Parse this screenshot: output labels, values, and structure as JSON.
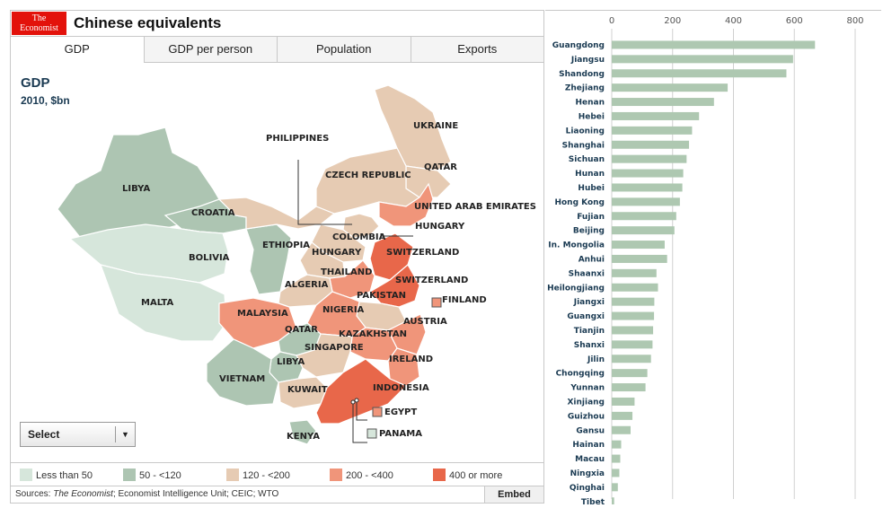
{
  "header": {
    "logo_line1": "The",
    "logo_line2": "Economist",
    "title": "Chinese equivalents"
  },
  "tabs": [
    {
      "label": "GDP",
      "active": true
    },
    {
      "label": "GDP per person",
      "active": false
    },
    {
      "label": "Population",
      "active": false
    },
    {
      "label": "Exports",
      "active": false
    }
  ],
  "map": {
    "title": "GDP",
    "subtitle": "2010, $bn",
    "select_label": "Select",
    "regions": [
      {
        "label": "LIBYA",
        "bucket": 1
      },
      {
        "label": "CROATIA",
        "bucket": 1
      },
      {
        "label": "BOLIVIA",
        "bucket": 0
      },
      {
        "label": "MALTA",
        "bucket": 0
      },
      {
        "label": "ETHIOPIA",
        "bucket": 1
      },
      {
        "label": "UKRAINE",
        "bucket": 2
      },
      {
        "label": "QATAR",
        "bucket": 2
      },
      {
        "label": "CZECH REPUBLIC",
        "bucket": 2
      },
      {
        "label": "PHILIPPINES",
        "bucket": 2
      },
      {
        "label": "UNITED ARAB EMIRATES",
        "bucket": 3
      },
      {
        "label": "HUNGARY",
        "bucket": 2
      },
      {
        "label": "COLOMBIA",
        "bucket": 2
      },
      {
        "label": "HUNGARY",
        "bucket": 2
      },
      {
        "label": "SWITZERLAND",
        "bucket": 4
      },
      {
        "label": "THAILAND",
        "bucket": 3
      },
      {
        "label": "SWITZERLAND",
        "bucket": 4
      },
      {
        "label": "ALGERIA",
        "bucket": 2
      },
      {
        "label": "PAKISTAN",
        "bucket": 2
      },
      {
        "label": "FINLAND",
        "bucket": 3
      },
      {
        "label": "MALAYSIA",
        "bucket": 3
      },
      {
        "label": "NIGERIA",
        "bucket": 3
      },
      {
        "label": "AUSTRIA",
        "bucket": 3
      },
      {
        "label": "QATAR",
        "bucket": 1
      },
      {
        "label": "KAZAKHSTAN",
        "bucket": 3
      },
      {
        "label": "SINGAPORE",
        "bucket": 2
      },
      {
        "label": "LIBYA",
        "bucket": 1
      },
      {
        "label": "IRELAND",
        "bucket": 3
      },
      {
        "label": "VIETNAM",
        "bucket": 1
      },
      {
        "label": "KUWAIT",
        "bucket": 2
      },
      {
        "label": "INDONESIA",
        "bucket": 4
      },
      {
        "label": "EGYPT",
        "bucket": 3
      },
      {
        "label": "PANAMA",
        "bucket": 0
      },
      {
        "label": "KENYA",
        "bucket": 1
      }
    ]
  },
  "legend": [
    {
      "label": "Less than 50",
      "color": "#d6e6db"
    },
    {
      "label": "50 - <120",
      "color": "#adc5b2"
    },
    {
      "label": "120 - <200",
      "color": "#e6cbb3"
    },
    {
      "label": "200 - <400",
      "color": "#f0957a"
    },
    {
      "label": "400 or more",
      "color": "#e8674a"
    }
  ],
  "footer": {
    "sources_prefix": "Sources: ",
    "sources_italic": "The Economist",
    "sources_rest": "; Economist Intelligence Unit; CEIC; WTO",
    "embed_label": "Embed"
  },
  "chart_data": {
    "type": "bar",
    "orientation": "horizontal",
    "bar_color": "#aec8b1",
    "xlim": [
      0,
      800
    ],
    "xticks": [
      0,
      200,
      400,
      600,
      800
    ],
    "grid": true,
    "categories": [
      "Guangdong",
      "Jiangsu",
      "Shandong",
      "Zhejiang",
      "Henan",
      "Hebei",
      "Liaoning",
      "Shanghai",
      "Sichuan",
      "Hunan",
      "Hubei",
      "Hong Kong",
      "Fujian",
      "Beijing",
      "In. Mongolia",
      "Anhui",
      "Shaanxi",
      "Heilongjiang",
      "Jiangxi",
      "Guangxi",
      "Tianjin",
      "Shanxi",
      "Jilin",
      "Chongqing",
      "Yunnan",
      "Xinjiang",
      "Guizhou",
      "Gansu",
      "Hainan",
      "Macau",
      "Ningxia",
      "Qinghai",
      "Tibet"
    ],
    "values": [
      668,
      596,
      574,
      381,
      336,
      287,
      264,
      254,
      246,
      235,
      232,
      224,
      212,
      206,
      174,
      182,
      147,
      152,
      140,
      139,
      136,
      134,
      129,
      117,
      111,
      75,
      68,
      62,
      31,
      28,
      25,
      20,
      8
    ]
  }
}
